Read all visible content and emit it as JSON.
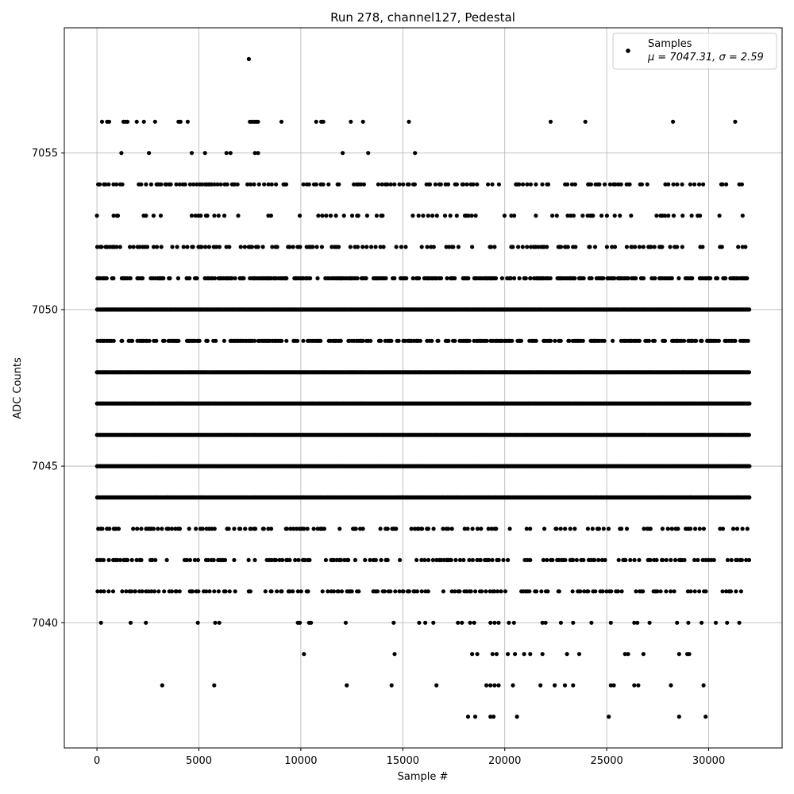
{
  "chart_data": {
    "type": "scatter",
    "title": "Run 278, channel127, Pedestal",
    "xlabel": "Sample #",
    "ylabel": "ADC Counts",
    "xlim": [
      -1600,
      33600
    ],
    "ylim": [
      7036,
      7059
    ],
    "x_ticks": [
      0,
      5000,
      10000,
      15000,
      20000,
      25000,
      30000
    ],
    "y_ticks": [
      7040,
      7045,
      7050,
      7055
    ],
    "grid": true,
    "legend": {
      "placement": "top-right",
      "entries": [
        {
          "label": "Samples",
          "stats": "μ = 7047.31, σ = 2.59"
        }
      ]
    },
    "series": [
      {
        "name": "Samples",
        "color": "#000000",
        "x_range": [
          0,
          31999
        ],
        "bands": [
          {
            "y": 7050,
            "density": "dense"
          },
          {
            "y": 7048,
            "density": "dense"
          },
          {
            "y": 7047,
            "density": "dense"
          },
          {
            "y": 7046,
            "density": "dense"
          },
          {
            "y": 7045,
            "density": "dense"
          },
          {
            "y": 7044,
            "density": "dense"
          },
          {
            "y": 7049,
            "density": "medium"
          },
          {
            "y": 7051,
            "density": "medium"
          },
          {
            "y": 7052,
            "density": "sparse"
          },
          {
            "y": 7042,
            "density": "sparse"
          },
          {
            "y": 7041,
            "density": "sparse"
          },
          {
            "y": 7043,
            "density": "sparse"
          },
          {
            "y": 7054,
            "density": "sparse"
          },
          {
            "y": 7053,
            "density": "rare"
          }
        ],
        "points": [
          [
            7450,
            7058
          ],
          [
            250,
            7056
          ],
          [
            500,
            7056
          ],
          [
            600,
            7056
          ],
          [
            1300,
            7056
          ],
          [
            1400,
            7056
          ],
          [
            1500,
            7056
          ],
          [
            1950,
            7056
          ],
          [
            2300,
            7056
          ],
          [
            2850,
            7056
          ],
          [
            4000,
            7056
          ],
          [
            4100,
            7056
          ],
          [
            4450,
            7056
          ],
          [
            7500,
            7056
          ],
          [
            7600,
            7056
          ],
          [
            7700,
            7056
          ],
          [
            7800,
            7056
          ],
          [
            7900,
            7056
          ],
          [
            9050,
            7056
          ],
          [
            10750,
            7056
          ],
          [
            11000,
            7056
          ],
          [
            11100,
            7056
          ],
          [
            12450,
            7056
          ],
          [
            13050,
            7056
          ],
          [
            15300,
            7056
          ],
          [
            22250,
            7056
          ],
          [
            23950,
            7056
          ],
          [
            28250,
            7056
          ],
          [
            31300,
            7056
          ],
          [
            1200,
            7055
          ],
          [
            2550,
            7055
          ],
          [
            4650,
            7055
          ],
          [
            5300,
            7055
          ],
          [
            6350,
            7055
          ],
          [
            6550,
            7055
          ],
          [
            7750,
            7055
          ],
          [
            7900,
            7055
          ],
          [
            12050,
            7055
          ],
          [
            13300,
            7055
          ],
          [
            15600,
            7055
          ],
          [
            200,
            7040
          ],
          [
            1650,
            7040
          ],
          [
            2400,
            7040
          ],
          [
            4950,
            7040
          ],
          [
            5800,
            7040
          ],
          [
            6000,
            7040
          ],
          [
            9850,
            7040
          ],
          [
            9950,
            7040
          ],
          [
            10400,
            7040
          ],
          [
            10500,
            7040
          ],
          [
            12200,
            7040
          ],
          [
            14550,
            7040
          ],
          [
            15800,
            7040
          ],
          [
            16100,
            7040
          ],
          [
            16500,
            7040
          ],
          [
            17700,
            7040
          ],
          [
            17900,
            7040
          ],
          [
            18300,
            7040
          ],
          [
            18500,
            7040
          ],
          [
            19300,
            7040
          ],
          [
            19500,
            7040
          ],
          [
            19700,
            7040
          ],
          [
            20200,
            7040
          ],
          [
            20450,
            7040
          ],
          [
            21850,
            7040
          ],
          [
            22000,
            7040
          ],
          [
            22750,
            7040
          ],
          [
            23350,
            7040
          ],
          [
            24250,
            7040
          ],
          [
            25200,
            7040
          ],
          [
            26350,
            7040
          ],
          [
            26500,
            7040
          ],
          [
            27100,
            7040
          ],
          [
            28450,
            7040
          ],
          [
            29000,
            7040
          ],
          [
            29650,
            7040
          ],
          [
            30350,
            7040
          ],
          [
            30900,
            7040
          ],
          [
            31500,
            7040
          ],
          [
            10150,
            7039
          ],
          [
            14600,
            7039
          ],
          [
            18400,
            7039
          ],
          [
            18650,
            7039
          ],
          [
            19400,
            7039
          ],
          [
            19600,
            7039
          ],
          [
            20150,
            7039
          ],
          [
            20500,
            7039
          ],
          [
            20950,
            7039
          ],
          [
            21250,
            7039
          ],
          [
            21850,
            7039
          ],
          [
            23050,
            7039
          ],
          [
            23650,
            7039
          ],
          [
            25900,
            7039
          ],
          [
            26050,
            7039
          ],
          [
            26800,
            7039
          ],
          [
            28550,
            7039
          ],
          [
            28950,
            7039
          ],
          [
            29050,
            7039
          ],
          [
            3200,
            7038
          ],
          [
            5750,
            7038
          ],
          [
            12250,
            7038
          ],
          [
            14450,
            7038
          ],
          [
            16650,
            7038
          ],
          [
            19100,
            7038
          ],
          [
            19300,
            7038
          ],
          [
            19500,
            7038
          ],
          [
            19700,
            7038
          ],
          [
            20400,
            7038
          ],
          [
            21750,
            7038
          ],
          [
            22450,
            7038
          ],
          [
            22950,
            7038
          ],
          [
            23350,
            7038
          ],
          [
            25200,
            7038
          ],
          [
            25350,
            7038
          ],
          [
            26350,
            7038
          ],
          [
            26550,
            7038
          ],
          [
            28150,
            7038
          ],
          [
            29750,
            7038
          ],
          [
            18200,
            7037
          ],
          [
            18550,
            7037
          ],
          [
            19300,
            7037
          ],
          [
            19450,
            7037
          ],
          [
            20600,
            7037
          ],
          [
            25100,
            7037
          ],
          [
            28550,
            7037
          ],
          [
            29850,
            7037
          ]
        ]
      }
    ]
  }
}
